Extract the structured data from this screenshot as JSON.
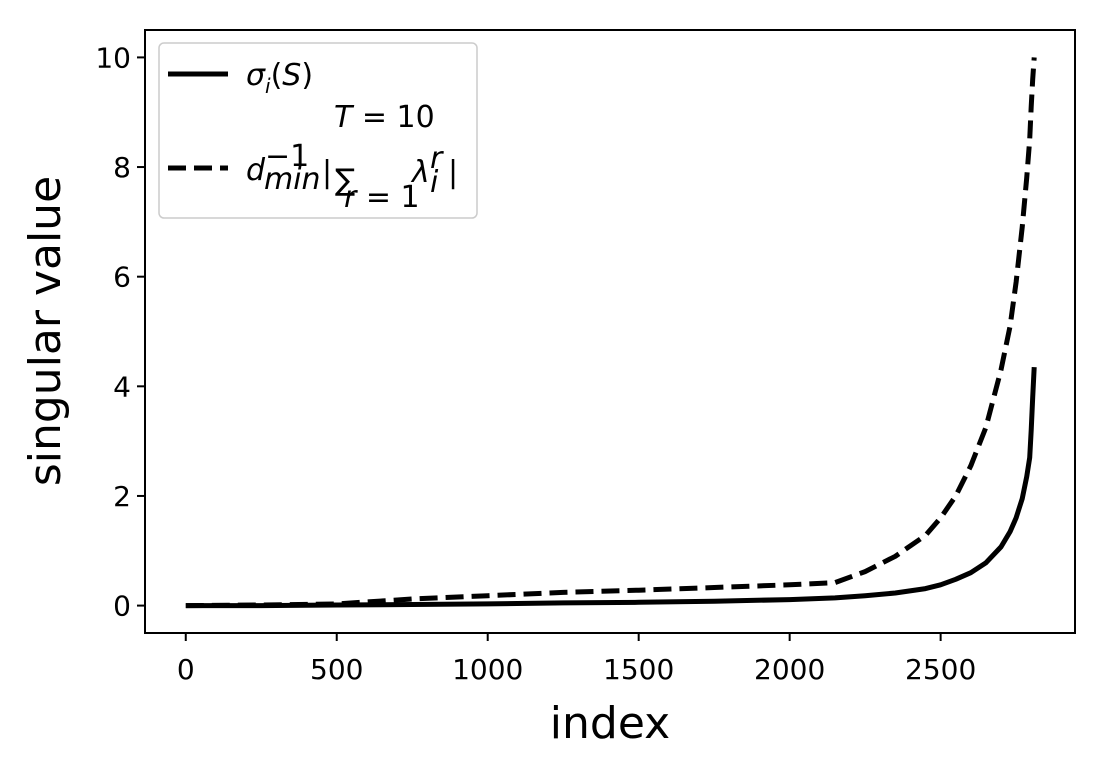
{
  "chart_data": {
    "type": "line",
    "xlabel": "index",
    "ylabel": "singular value",
    "xlim": [
      -135,
      2945
    ],
    "ylim": [
      -0.5,
      10.5
    ],
    "xticks": [
      0,
      500,
      1000,
      1500,
      2000,
      2500
    ],
    "yticks": [
      0,
      2,
      4,
      6,
      8,
      10
    ],
    "grid": false,
    "legend_position": "top-left",
    "series": [
      {
        "name": "σ_i(S)",
        "style": "solid",
        "color": "#000000",
        "x": [
          0,
          250,
          500,
          750,
          1000,
          1250,
          1500,
          1750,
          2000,
          2150,
          2250,
          2350,
          2450,
          2500,
          2550,
          2600,
          2650,
          2700,
          2730,
          2750,
          2770,
          2785,
          2795,
          2800,
          2805,
          2810
        ],
        "y": [
          0.0,
          0.0,
          0.01,
          0.02,
          0.03,
          0.05,
          0.06,
          0.08,
          0.11,
          0.14,
          0.18,
          0.23,
          0.31,
          0.38,
          0.48,
          0.6,
          0.78,
          1.07,
          1.35,
          1.6,
          1.95,
          2.35,
          2.7,
          3.2,
          3.8,
          4.35
        ]
      },
      {
        "name": "d_min^{-1} | Σ_{r=1}^{T=10} λ_i^r |",
        "style": "dashed",
        "color": "#000000",
        "x": [
          0,
          250,
          500,
          750,
          1000,
          1250,
          1500,
          1750,
          2000,
          2150,
          2250,
          2350,
          2450,
          2500,
          2550,
          2600,
          2650,
          2700,
          2730,
          2750,
          2770,
          2785,
          2795,
          2800,
          2805,
          2810
        ],
        "y": [
          0.0,
          0.01,
          0.03,
          0.12,
          0.18,
          0.24,
          0.28,
          0.33,
          0.38,
          0.42,
          0.62,
          0.9,
          1.28,
          1.6,
          2.0,
          2.55,
          3.25,
          4.3,
          5.1,
          5.9,
          6.9,
          7.8,
          8.5,
          9.1,
          9.6,
          10.0
        ]
      }
    ]
  }
}
